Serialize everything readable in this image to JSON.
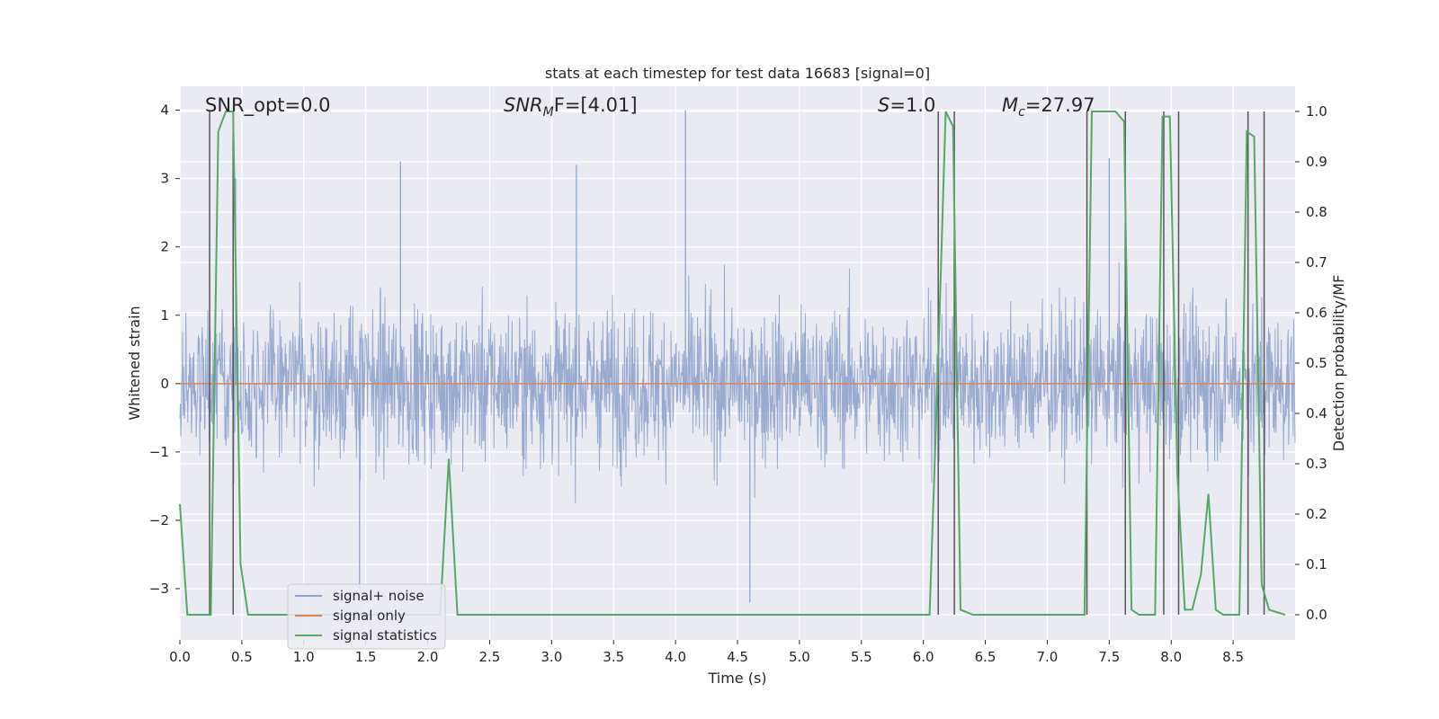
{
  "chart_data": {
    "type": "line",
    "title": "stats at each timestep for test data 16683 [signal=0]",
    "xlabel": "Time (s)",
    "ylabel": "Whitened strain",
    "y2label": "Detection probability/MF",
    "xlim": [
      0.0,
      9.0
    ],
    "ylim": [
      -3.75,
      4.35
    ],
    "y2lim": [
      -0.05,
      1.05
    ],
    "xticks": [
      "0.0",
      "0.5",
      "1.0",
      "1.5",
      "2.0",
      "2.5",
      "3.0",
      "3.5",
      "4.0",
      "4.5",
      "5.0",
      "5.5",
      "6.0",
      "6.5",
      "7.0",
      "7.5",
      "8.0",
      "8.5"
    ],
    "yticks": [
      "4",
      "3",
      "2",
      "1",
      "0",
      "−1",
      "−2",
      "−3"
    ],
    "y2ticks": [
      "1.0",
      "0.9",
      "0.8",
      "0.7",
      "0.6",
      "0.5",
      "0.4",
      "0.3",
      "0.2",
      "0.1",
      "0.0"
    ],
    "annotations": {
      "snr_opt": "SNR_opt=0.0",
      "snr_mf_sym": "SNR",
      "snr_mf_sub": "M",
      "snr_mf_rest": "F=[4.01]",
      "s_sym": "S",
      "s_rest": "=1.0",
      "mc_sym": "M",
      "mc_sub": "c",
      "mc_rest": "=27.97"
    },
    "legend": {
      "placement": "lower-left",
      "entries": [
        "signal+ noise",
        "signal only",
        "signal statistics"
      ]
    },
    "colors": {
      "background": "#eaeaf2",
      "grid": "#ffffff",
      "noise": "#8fa3cc",
      "signal_only": "#dd8452",
      "statistics": "#55a868",
      "vlines": "#555555"
    },
    "series": [
      {
        "name": "signal+ noise",
        "description_values": "whitened strain noise, approx Gaussian, sigma ~0.8",
        "notable_peaks": [
          {
            "x": 0.45,
            "y": 3.0
          },
          {
            "x": 1.78,
            "y": 3.25
          },
          {
            "x": 3.2,
            "y": 3.2
          },
          {
            "x": 4.08,
            "y": 4.0
          },
          {
            "x": 4.6,
            "y": -3.2
          },
          {
            "x": 1.45,
            "y": -3.0
          },
          {
            "x": 7.5,
            "y": 3.3
          }
        ]
      },
      {
        "name": "signal only",
        "x": [
          0.0,
          9.0
        ],
        "y": [
          0.0,
          0.0
        ]
      },
      {
        "name": "signal statistics",
        "x": [
          0.0,
          0.06,
          0.25,
          0.31,
          0.37,
          0.43,
          0.49,
          0.55,
          2.1,
          2.17,
          2.24,
          2.3,
          6.05,
          6.12,
          6.18,
          6.24,
          6.3,
          6.4,
          7.3,
          7.36,
          7.43,
          7.55,
          7.62,
          7.68,
          7.74,
          7.8,
          7.87,
          7.93,
          7.99,
          8.05,
          8.11,
          8.17,
          8.24,
          8.3,
          8.36,
          8.42,
          8.48,
          8.55,
          8.61,
          8.67,
          8.73,
          8.79,
          8.92
        ],
        "y": [
          0.22,
          0.0,
          0.0,
          0.96,
          1.0,
          1.0,
          0.1,
          0.0,
          0.0,
          0.31,
          0.0,
          0.0,
          0.0,
          0.51,
          1.0,
          0.97,
          0.01,
          0.0,
          0.0,
          1.0,
          1.0,
          1.0,
          0.98,
          0.01,
          0.0,
          0.0,
          0.0,
          0.99,
          0.99,
          0.28,
          0.01,
          0.01,
          0.08,
          0.24,
          0.01,
          0.0,
          0.0,
          0.0,
          0.96,
          0.95,
          0.06,
          0.01,
          0.0
        ]
      }
    ],
    "vertical_lines_x": [
      0.24,
      0.43,
      6.12,
      6.25,
      7.32,
      7.63,
      7.94,
      8.06,
      8.62,
      8.75
    ]
  }
}
